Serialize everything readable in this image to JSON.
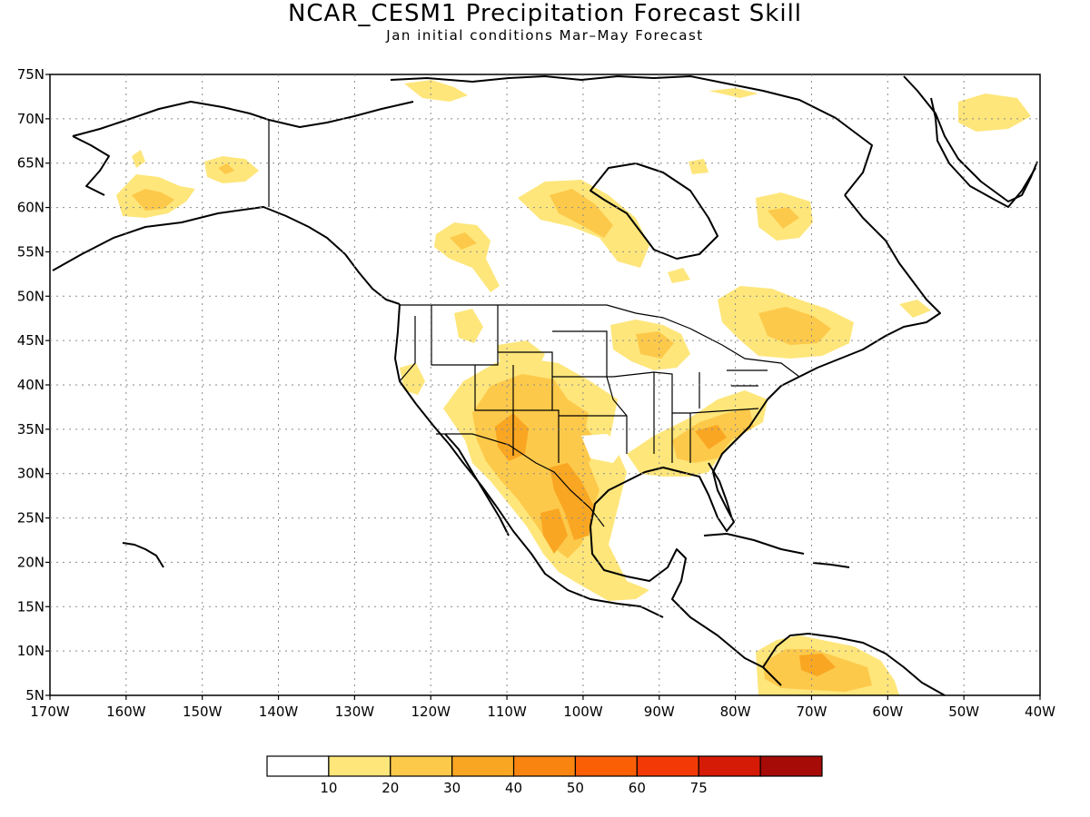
{
  "title": "NCAR_CESM1 Precipitation Forecast Skill",
  "subtitle": "Jan initial conditions  Mar–May Forecast",
  "map": {
    "lon_labels": [
      "170W",
      "160W",
      "150W",
      "140W",
      "130W",
      "120W",
      "110W",
      "100W",
      "90W",
      "80W",
      "70W",
      "60W",
      "50W",
      "40W"
    ],
    "lat_labels": [
      "75N",
      "70N",
      "65N",
      "60N",
      "55N",
      "50N",
      "45N",
      "40N",
      "35N",
      "30N",
      "25N",
      "20N",
      "15N",
      "10N",
      "5N"
    ],
    "lon_range": [
      -170,
      -40
    ],
    "lat_range": [
      5,
      75
    ],
    "grid_lines": true
  },
  "colorbar": {
    "labels": [
      "10",
      "20",
      "30",
      "40",
      "50",
      "60",
      "75"
    ],
    "colors": [
      "#ffffff",
      "#fee67b",
      "#fdc94a",
      "#f9a623",
      "#f98510",
      "#fb5f06",
      "#f33a06",
      "#d51a05",
      "#a70b07"
    ]
  }
}
